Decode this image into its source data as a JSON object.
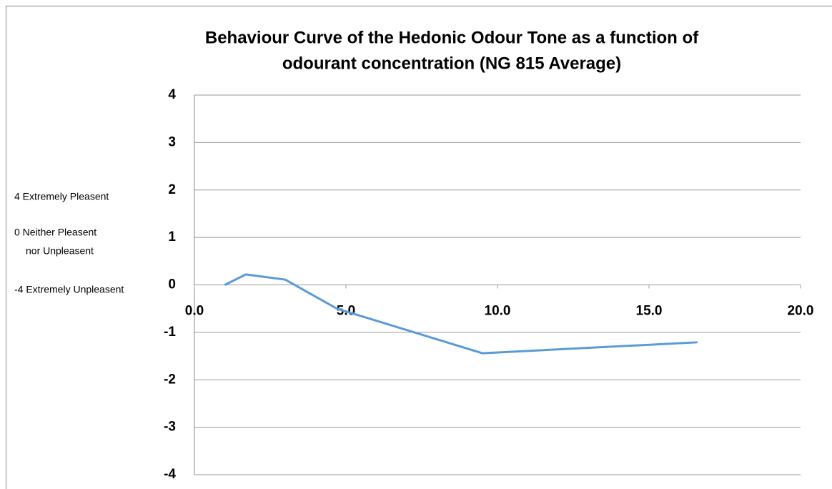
{
  "chart_data": {
    "type": "line",
    "title_lines": [
      "Behaviour Curve of the Hedonic Odour Tone as a function of",
      "odourant concentration (NG 815 Average)"
    ],
    "annotations": [
      "4  Extremely Pleasent",
      "0  Neither Pleasent",
      "nor Unpleasent",
      "-4 Extremely Unpleasent"
    ],
    "series": [
      {
        "color": "#5b9bd5",
        "x": [
          1.0,
          1.7,
          3.0,
          4.7,
          9.5,
          16.6
        ],
        "values": [
          0.0,
          0.22,
          0.11,
          -0.5,
          -1.44,
          -1.21
        ]
      }
    ],
    "xlim": [
      0,
      20
    ],
    "xticks": [
      {
        "value": 0,
        "label": "0.0"
      },
      {
        "value": 5,
        "label": "5.0"
      },
      {
        "value": 10,
        "label": "10.0"
      },
      {
        "value": 15,
        "label": "15.0"
      },
      {
        "value": 20,
        "label": "20.0"
      }
    ],
    "ylim": [
      -4,
      4
    ],
    "yticks": [
      4,
      3,
      2,
      1,
      0,
      -1,
      -2,
      -3,
      -4
    ],
    "grid": true
  }
}
